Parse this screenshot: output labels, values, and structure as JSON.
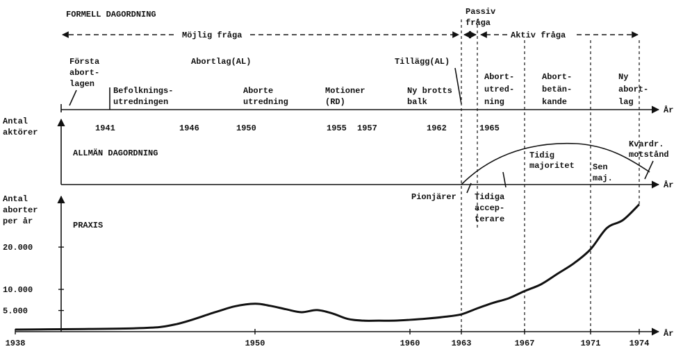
{
  "axis_unit": "År",
  "formell": {
    "title": "FORMELL DAGORDNING",
    "phases": [
      {
        "lines": [
          "Passiv",
          "fråga"
        ]
      },
      {
        "lines": [
          "Möjlig fråga"
        ]
      },
      {
        "lines": [
          "Aktiv fråga"
        ]
      }
    ],
    "events": [
      {
        "lines": [
          "Första",
          "abort-",
          "lagen"
        ]
      },
      {
        "lines": [
          "Abortlag(AL)"
        ]
      },
      {
        "lines": [
          "Tillägg(AL)"
        ]
      },
      {
        "lines": [
          "Befolknings-",
          "utredningen"
        ]
      },
      {
        "lines": [
          "Aborte",
          "utredning"
        ]
      },
      {
        "lines": [
          "Motioner",
          "(RD)"
        ]
      },
      {
        "lines": [
          "Ny brotts",
          "balk"
        ]
      },
      {
        "lines": [
          "Abort-",
          "utred-",
          "ning"
        ]
      },
      {
        "lines": [
          "Abort-",
          "betän-",
          "kande"
        ]
      },
      {
        "lines": [
          "Ny",
          "abort-",
          "lag"
        ]
      }
    ],
    "years": [
      1941,
      1946,
      1950,
      1955,
      1957,
      1962,
      1965
    ]
  },
  "allman": {
    "title": "ALLMÄN DAGORDNING",
    "axis_label": [
      "Antal",
      "aktörer"
    ],
    "groups": [
      {
        "lines": [
          "Pionjärer"
        ]
      },
      {
        "lines": [
          "Tidiga",
          "accep-",
          "terare"
        ]
      },
      {
        "lines": [
          "Tidig",
          "majoritet"
        ]
      },
      {
        "lines": [
          "Sen",
          "maj."
        ]
      },
      {
        "lines": [
          "Kvardr.",
          "motstånd"
        ]
      }
    ]
  },
  "praxis": {
    "type": "line",
    "title": "PRAXIS",
    "axis_label": [
      "Antal",
      "aborter",
      "per år"
    ],
    "x": [
      1938,
      1944,
      1946,
      1948,
      1949,
      1950,
      1951,
      1952,
      1953,
      1954,
      1955,
      1956,
      1957,
      1958,
      1959,
      1960,
      1961,
      1962,
      1963,
      1964,
      1965,
      1966,
      1967,
      1968,
      1969,
      1970,
      1971,
      1972,
      1973,
      1974
    ],
    "values": [
      500,
      800,
      1700,
      4600,
      6000,
      6600,
      6100,
      5300,
      4600,
      5100,
      4300,
      3000,
      2600,
      2600,
      2600,
      2800,
      3100,
      3500,
      4100,
      5500,
      6800,
      7900,
      9600,
      11200,
      13700,
      16200,
      19500,
      24500,
      26400,
      30100
    ],
    "color": "#111111",
    "xticks": [
      1938,
      1950,
      1960,
      1963,
      1967,
      1971,
      1974
    ],
    "ylim": [
      0,
      32000
    ],
    "yticks": [
      {
        "value": 5000,
        "label": "5.000"
      },
      {
        "value": 10000,
        "label": "10.000"
      },
      {
        "value": 20000,
        "label": "20.000"
      }
    ]
  }
}
